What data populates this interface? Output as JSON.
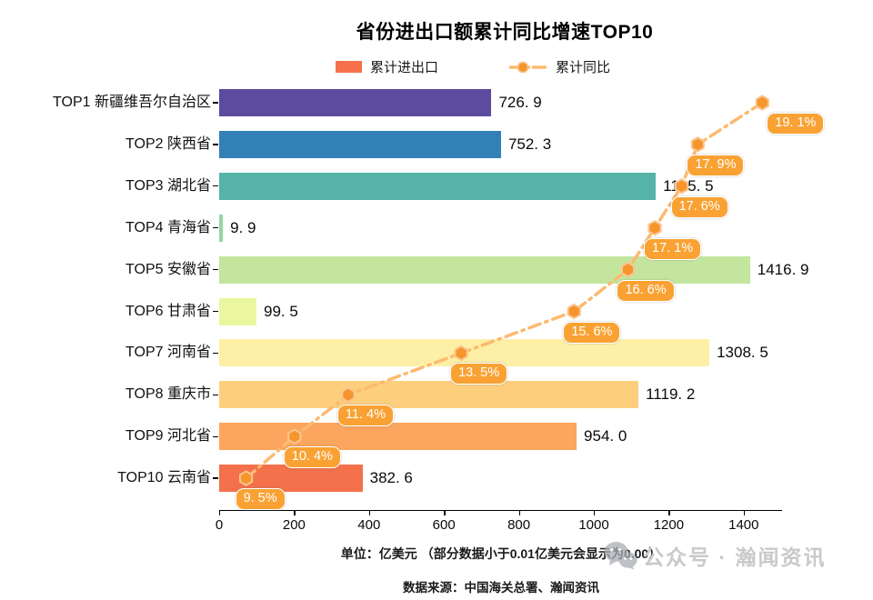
{
  "title": "省份进出口额累计同比增速TOP10",
  "legend": {
    "bar_label": "累计进出口",
    "line_label": "累计同比"
  },
  "chart_data": {
    "type": "bar",
    "orientation": "horizontal",
    "title": "省份进出口额累计同比增速TOP10",
    "legend_entries": [
      "累计进出口",
      "累计同比"
    ],
    "xlabel": "",
    "ylabel": "",
    "xlim": [
      0,
      1500
    ],
    "x_ticks": [
      0,
      200,
      400,
      600,
      800,
      1000,
      1200,
      1400
    ],
    "pct_axis_lim": [
      9.0,
      19.45
    ],
    "grid": false,
    "rows": [
      {
        "rank": "TOP1",
        "province": "新疆维吾尔自治区",
        "value": 726.9,
        "value_label": "726. 9",
        "pct": 19.1,
        "pct_label": "19. 1%",
        "bar_color": "#5c4b9f"
      },
      {
        "rank": "TOP2",
        "province": "陕西省",
        "value": 752.3,
        "value_label": "752. 3",
        "pct": 17.9,
        "pct_label": "17. 9%",
        "bar_color": "#3380b7"
      },
      {
        "rank": "TOP3",
        "province": "湖北省",
        "value": 1165.5,
        "value_label": "1165. 5",
        "pct": 17.6,
        "pct_label": "17. 6%",
        "bar_color": "#56b3a8"
      },
      {
        "rank": "TOP4",
        "province": "青海省",
        "value": 9.9,
        "value_label": "9. 9",
        "pct": 17.1,
        "pct_label": "17. 1%",
        "bar_color": "#98d4a4"
      },
      {
        "rank": "TOP5",
        "province": "安徽省",
        "value": 1416.9,
        "value_label": "1416. 9",
        "pct": 16.6,
        "pct_label": "16. 6%",
        "bar_color": "#c3e59d"
      },
      {
        "rank": "TOP6",
        "province": "甘肃省",
        "value": 99.5,
        "value_label": "99. 5",
        "pct": 15.6,
        "pct_label": "15. 6%",
        "bar_color": "#eaf79f"
      },
      {
        "rank": "TOP7",
        "province": "河南省",
        "value": 1308.5,
        "value_label": "1308. 5",
        "pct": 13.5,
        "pct_label": "13. 5%",
        "bar_color": "#fdf0a6"
      },
      {
        "rank": "TOP8",
        "province": "重庆市",
        "value": 1119.2,
        "value_label": "1119. 2",
        "pct": 11.4,
        "pct_label": "11. 4%",
        "bar_color": "#fdcf7d"
      },
      {
        "rank": "TOP9",
        "province": "河北省",
        "value": 954.0,
        "value_label": "954. 0",
        "pct": 10.4,
        "pct_label": "10. 4%",
        "bar_color": "#fca55e"
      },
      {
        "rank": "TOP10",
        "province": "云南省",
        "value": 382.6,
        "value_label": "382. 6",
        "pct": 9.5,
        "pct_label": "9. 5%",
        "bar_color": "#f4714c"
      }
    ]
  },
  "footer": {
    "unit_note": "单位：亿美元  （部分数据小于0.01亿美元会显示为0.00）",
    "source_note": "数据来源：中国海关总署、瀚闻资讯"
  },
  "watermark": {
    "text": "公众号 · 瀚闻资讯"
  },
  "colors": {
    "legend_bar_swatch": "#f4714c",
    "line": "#fcba70",
    "marker_fill": "#f6952e",
    "marker_stroke": "#fbc68f",
    "pct_badge_bg": "#f9a233",
    "axis": "#000000",
    "watermark_gray": "#c9c9c9",
    "watermark_icon_gray": "#a9adb2"
  }
}
